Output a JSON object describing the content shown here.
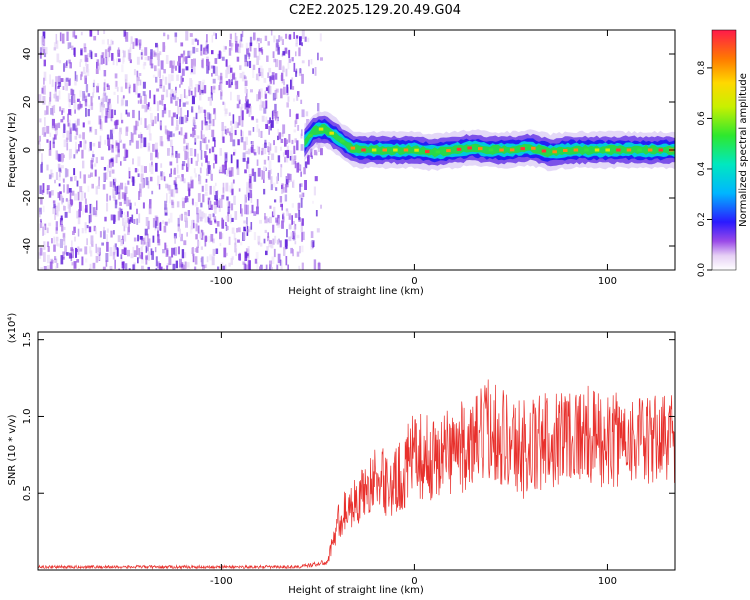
{
  "title": "C2E2.2025.129.20.49.G04",
  "colors": {
    "snr_line": "#e8302c",
    "axis": "#000000"
  },
  "chart_data": [
    {
      "type": "heatmap",
      "name": "spectrogram",
      "xlabel": "Height of straight line (km)",
      "ylabel": "Frequency (Hz)",
      "xlim": [
        -195,
        135
      ],
      "ylim": [
        -50,
        50
      ],
      "xticks": [
        -100,
        0,
        100
      ],
      "yticks": [
        -40,
        -20,
        0,
        20,
        40
      ],
      "colorbar": {
        "label": "Normalized spectral amplitude",
        "range": [
          0,
          0.95
        ],
        "ticks": [
          0.0,
          0.2,
          0.4,
          0.6,
          0.8
        ],
        "colormap": "rainbow"
      },
      "noise_region_x": [
        -195,
        -52
      ],
      "signal_ridge": [
        {
          "x": -57,
          "y": 3
        },
        {
          "x": -52,
          "y": 8
        },
        {
          "x": -47,
          "y": 9
        },
        {
          "x": -43,
          "y": 7
        },
        {
          "x": -38,
          "y": 4
        },
        {
          "x": -33,
          "y": 1
        },
        {
          "x": -28,
          "y": 0
        },
        {
          "x": -20,
          "y": 0
        },
        {
          "x": -10,
          "y": 0
        },
        {
          "x": 0,
          "y": 0
        },
        {
          "x": 10,
          "y": -1
        },
        {
          "x": 20,
          "y": 0
        },
        {
          "x": 30,
          "y": 1
        },
        {
          "x": 40,
          "y": 0
        },
        {
          "x": 50,
          "y": 0
        },
        {
          "x": 60,
          "y": 1
        },
        {
          "x": 70,
          "y": -1
        },
        {
          "x": 80,
          "y": 0
        },
        {
          "x": 90,
          "y": 0
        },
        {
          "x": 100,
          "y": 0
        },
        {
          "x": 110,
          "y": 0
        },
        {
          "x": 120,
          "y": 0
        },
        {
          "x": 130,
          "y": 0
        }
      ]
    },
    {
      "type": "line",
      "name": "snr",
      "xlabel": "Height of straight line (km)",
      "ylabel": "SNR (10 * v/v)",
      "y_multiplier": "(x10⁴)",
      "xlim": [
        -195,
        135
      ],
      "ylim": [
        0,
        1.55
      ],
      "xticks": [
        -100,
        0,
        100
      ],
      "yticks": [
        0.5,
        1.0,
        1.5
      ],
      "x": [
        -195,
        -150,
        -100,
        -60,
        -45,
        -40,
        -35,
        -30,
        -20,
        -10,
        0,
        10,
        20,
        30,
        40,
        50,
        60,
        70,
        80,
        90,
        100,
        110,
        120,
        130,
        135
      ],
      "mean": [
        0.02,
        0.02,
        0.02,
        0.02,
        0.05,
        0.3,
        0.4,
        0.45,
        0.6,
        0.55,
        0.75,
        0.72,
        0.8,
        0.8,
        0.95,
        0.82,
        0.78,
        0.85,
        0.9,
        0.88,
        0.82,
        0.88,
        0.82,
        0.88,
        0.86
      ],
      "amp": [
        0.01,
        0.01,
        0.01,
        0.01,
        0.02,
        0.12,
        0.15,
        0.16,
        0.2,
        0.24,
        0.28,
        0.28,
        0.3,
        0.3,
        0.35,
        0.33,
        0.35,
        0.32,
        0.33,
        0.32,
        0.32,
        0.3,
        0.3,
        0.3,
        0.3
      ]
    }
  ]
}
